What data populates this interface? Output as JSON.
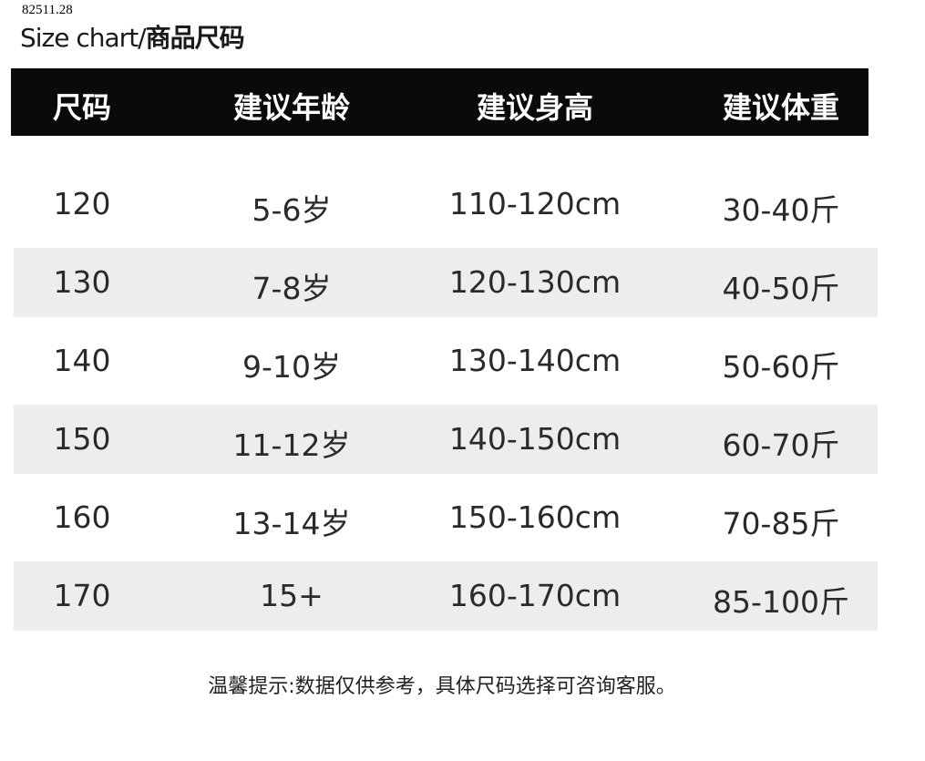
{
  "watermark": "82511.28",
  "title": {
    "prefix": "Size chart/",
    "cn": "商品尺码"
  },
  "headers": [
    "尺码",
    "建议年龄",
    "建议身高",
    "建议体重"
  ],
  "rows": [
    [
      "120",
      "5-6岁",
      "110-120cm",
      "30-40斤"
    ],
    [
      "130",
      "7-8岁",
      "120-130cm",
      "40-50斤"
    ],
    [
      "140",
      "9-10岁",
      "130-140cm",
      "50-60斤"
    ],
    [
      "150",
      "11-12岁",
      "140-150cm",
      "60-70斤"
    ],
    [
      "160",
      "13-14岁",
      "150-160cm",
      "70-85斤"
    ],
    [
      "170",
      "15+",
      "160-170cm",
      "85-100斤"
    ]
  ],
  "note": "温馨提示:数据仅供参考，具体尺码选择可咨询客服。",
  "colors": {
    "header_bg": "#0a0a0a",
    "stripe": "#ededed"
  }
}
